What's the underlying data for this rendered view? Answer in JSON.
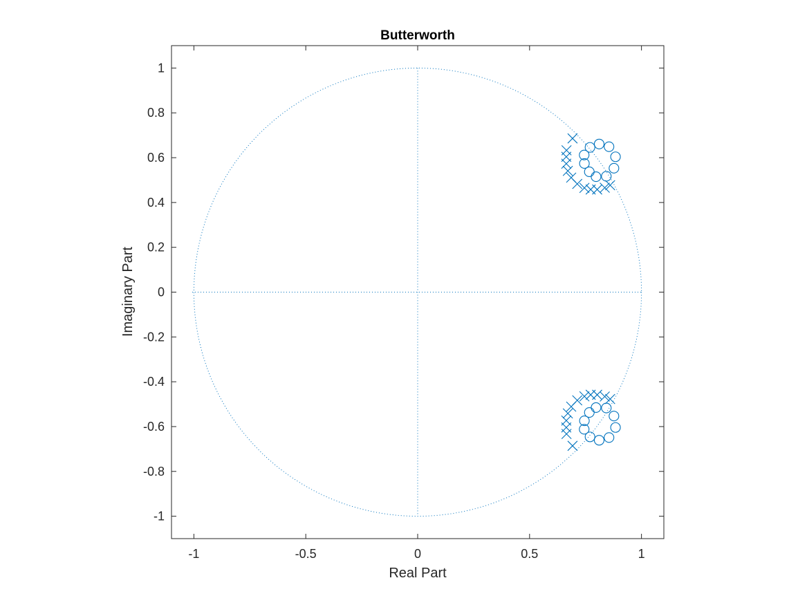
{
  "chart_data": {
    "type": "scatter",
    "title": "Butterworth",
    "xlabel": "Real Part",
    "ylabel": "Imaginary Part",
    "xlim": [
      -1.1,
      1.1
    ],
    "ylim": [
      -1.1,
      1.1
    ],
    "grid": false,
    "legend": "none",
    "xticks": [
      -1,
      -0.5,
      0,
      0.5,
      1
    ],
    "xtick_labels": [
      "-1",
      "-0.5",
      "0",
      "0.5",
      "1"
    ],
    "yticks": [
      1,
      0.8,
      0.6,
      0.4,
      0.2,
      0,
      -0.2,
      -0.4,
      -0.6,
      -0.8,
      -1
    ],
    "ytick_labels": [
      "1",
      "0.8",
      "0.6",
      "0.4",
      "0.2",
      "0",
      "-0.2",
      "-0.4",
      "-0.6",
      "-0.8",
      "-1"
    ],
    "color": "#0072bd",
    "unit_circle": true,
    "reference_axes": true,
    "zeros": [
      {
        "x": 0.811,
        "y": 0.661
      },
      {
        "x": 0.855,
        "y": 0.649
      },
      {
        "x": 0.884,
        "y": 0.604
      },
      {
        "x": 0.877,
        "y": 0.553
      },
      {
        "x": 0.843,
        "y": 0.517
      },
      {
        "x": 0.797,
        "y": 0.515
      },
      {
        "x": 0.767,
        "y": 0.537
      },
      {
        "x": 0.745,
        "y": 0.574
      },
      {
        "x": 0.744,
        "y": 0.612
      },
      {
        "x": 0.77,
        "y": 0.646
      },
      {
        "x": 0.811,
        "y": -0.661
      },
      {
        "x": 0.855,
        "y": -0.649
      },
      {
        "x": 0.884,
        "y": -0.604
      },
      {
        "x": 0.877,
        "y": -0.553
      },
      {
        "x": 0.843,
        "y": -0.517
      },
      {
        "x": 0.797,
        "y": -0.515
      },
      {
        "x": 0.767,
        "y": -0.537
      },
      {
        "x": 0.745,
        "y": -0.574
      },
      {
        "x": 0.744,
        "y": -0.612
      },
      {
        "x": 0.77,
        "y": -0.646
      }
    ],
    "poles": [
      {
        "x": 0.692,
        "y": 0.686
      },
      {
        "x": 0.665,
        "y": 0.633
      },
      {
        "x": 0.664,
        "y": 0.604
      },
      {
        "x": 0.664,
        "y": 0.573
      },
      {
        "x": 0.671,
        "y": 0.541
      },
      {
        "x": 0.686,
        "y": 0.511
      },
      {
        "x": 0.713,
        "y": 0.483
      },
      {
        "x": 0.745,
        "y": 0.465
      },
      {
        "x": 0.773,
        "y": 0.458
      },
      {
        "x": 0.802,
        "y": 0.458
      },
      {
        "x": 0.836,
        "y": 0.466
      },
      {
        "x": 0.86,
        "y": 0.477
      },
      {
        "x": 0.692,
        "y": -0.686
      },
      {
        "x": 0.665,
        "y": -0.633
      },
      {
        "x": 0.664,
        "y": -0.604
      },
      {
        "x": 0.664,
        "y": -0.573
      },
      {
        "x": 0.671,
        "y": -0.541
      },
      {
        "x": 0.686,
        "y": -0.511
      },
      {
        "x": 0.713,
        "y": -0.483
      },
      {
        "x": 0.745,
        "y": -0.465
      },
      {
        "x": 0.773,
        "y": -0.458
      },
      {
        "x": 0.802,
        "y": -0.458
      },
      {
        "x": 0.836,
        "y": -0.466
      },
      {
        "x": 0.86,
        "y": -0.477
      }
    ]
  }
}
